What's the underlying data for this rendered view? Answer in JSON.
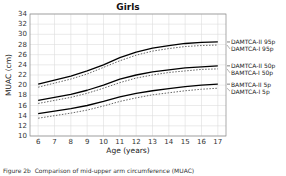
{
  "chart_data": {
    "type": "line",
    "title": "Girls",
    "xlabel": "Age (years)",
    "ylabel": "MUAC (cm)",
    "caption": "Figure 2b  Comparison of mid-upper arm circumference (MUAC)",
    "x": [
      6,
      7,
      8,
      9,
      10,
      11,
      12,
      13,
      14,
      15,
      16,
      17
    ],
    "xlim": [
      5.5,
      17.5
    ],
    "ylim": [
      10,
      34
    ],
    "xticks": [
      6,
      7,
      8,
      9,
      10,
      11,
      12,
      13,
      14,
      15,
      16,
      17
    ],
    "yticks": [
      10,
      12,
      14,
      16,
      18,
      20,
      22,
      24,
      26,
      28,
      30,
      32,
      34
    ],
    "grid": true,
    "series": [
      {
        "name": "DAMTCA-II 95p",
        "color": "#000000",
        "line_style": "solid",
        "values": [
          20.2,
          21.0,
          21.8,
          22.8,
          24.0,
          25.4,
          26.5,
          27.3,
          27.8,
          28.2,
          28.4,
          28.5
        ]
      },
      {
        "name": "DAMTCA-I 95p",
        "color": "#666666",
        "line_style": "dotted",
        "values": [
          19.6,
          20.4,
          21.2,
          22.2,
          23.5,
          24.8,
          25.9,
          26.7,
          27.2,
          27.6,
          27.8,
          27.9
        ]
      },
      {
        "name": "DAMTCA-II 50p",
        "color": "#000000",
        "line_style": "solid",
        "values": [
          17.0,
          17.6,
          18.2,
          19.0,
          20.0,
          21.2,
          22.0,
          22.6,
          23.0,
          23.4,
          23.6,
          23.8
        ]
      },
      {
        "name": "BAMTCA-I 50p",
        "color": "#666666",
        "line_style": "dotted",
        "values": [
          16.4,
          17.0,
          17.6,
          18.4,
          19.4,
          20.5,
          21.4,
          22.0,
          22.5,
          22.8,
          23.1,
          23.2
        ]
      },
      {
        "name": "BAMTCA-II 5p",
        "color": "#000000",
        "line_style": "solid",
        "values": [
          14.4,
          14.9,
          15.4,
          16.0,
          16.8,
          17.7,
          18.4,
          18.9,
          19.3,
          19.7,
          20.0,
          20.2
        ]
      },
      {
        "name": "DAMTCA-I 5p",
        "color": "#666666",
        "line_style": "dotted",
        "values": [
          13.5,
          14.0,
          14.5,
          15.1,
          15.9,
          16.8,
          17.5,
          18.1,
          18.5,
          18.9,
          19.2,
          19.4
        ]
      }
    ]
  }
}
